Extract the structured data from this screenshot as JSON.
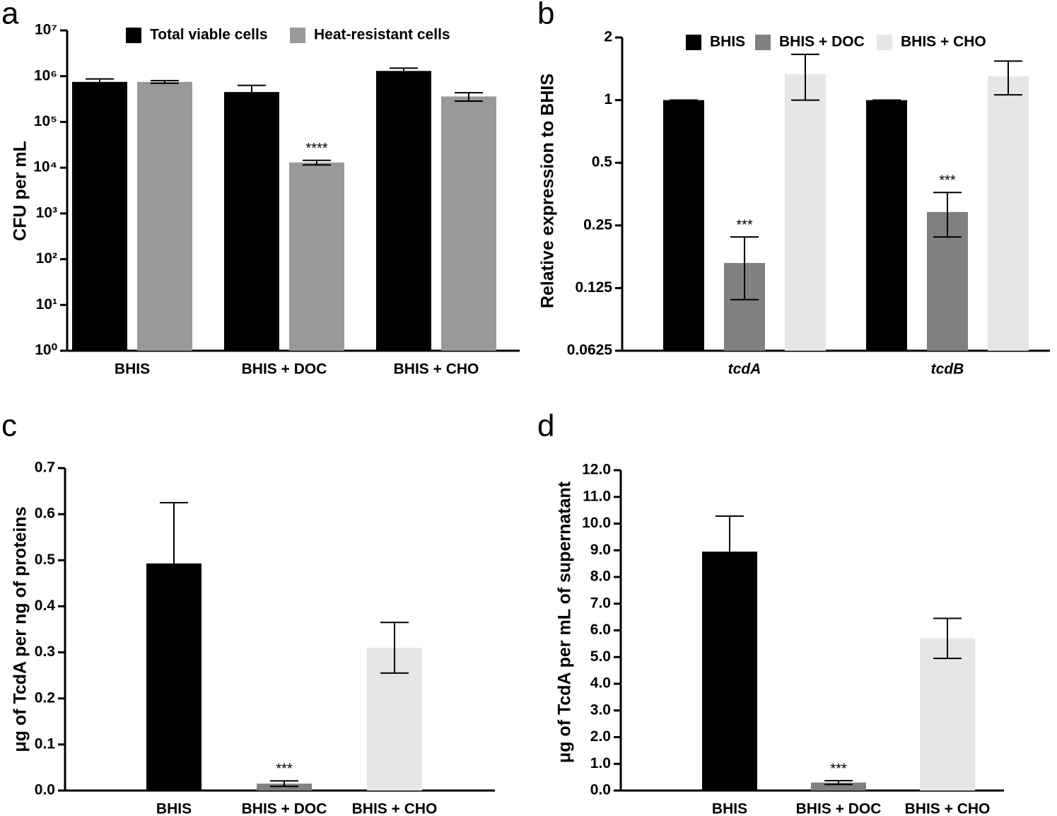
{
  "chart_data": [
    {
      "panel": "a",
      "type": "bar",
      "yscale": "log",
      "ylabel": "CFU per mL",
      "legend": "top",
      "categories": [
        "BHIS",
        "BHIS + DOC",
        "BHIS + CHO"
      ],
      "series": [
        {
          "name": "Total viable cells",
          "color": "#000000",
          "values": [
            750000,
            450000,
            1300000
          ],
          "errors": [
            120000,
            180000,
            200000
          ]
        },
        {
          "name": "Heat-resistant cells",
          "color": "#999999",
          "values": [
            750000,
            13000,
            360000
          ],
          "errors": [
            50000,
            1500,
            75000
          ],
          "annotations": [
            null,
            "****",
            null
          ]
        }
      ],
      "ylim": [
        1,
        10000000
      ],
      "yticks": [
        {
          "value": 1,
          "label": "10⁰"
        },
        {
          "value": 10,
          "label": "10¹"
        },
        {
          "value": 100,
          "label": "10²"
        },
        {
          "value": 1000,
          "label": "10³"
        },
        {
          "value": 10000,
          "label": "10⁴"
        },
        {
          "value": 100000,
          "label": "10⁵"
        },
        {
          "value": 1000000,
          "label": "10⁶"
        },
        {
          "value": 10000000,
          "label": "10⁷"
        }
      ]
    },
    {
      "panel": "b",
      "type": "bar",
      "yscale": "log",
      "ylabel": "Relative expression to BHIS",
      "legend": "top",
      "italic_categories": true,
      "categories": [
        "tcdA",
        "tcdB"
      ],
      "series": [
        {
          "name": "BHIS",
          "color": "#000000",
          "values": [
            1,
            1
          ],
          "errors": [
            0,
            0
          ]
        },
        {
          "name": "BHIS + DOC",
          "color": "#808080",
          "values": [
            0.165,
            0.29
          ],
          "errors": [
            0.055,
            0.07
          ],
          "annotations": [
            "***",
            "***"
          ]
        },
        {
          "name": "BHIS + CHO",
          "color": "#e6e6e6",
          "values": [
            1.33,
            1.3
          ],
          "errors": [
            0.33,
            0.24
          ]
        }
      ],
      "ylim": [
        0.0625,
        2
      ],
      "yticks": [
        0.0625,
        0.125,
        0.25,
        0.5,
        1,
        2
      ]
    },
    {
      "panel": "c",
      "type": "bar",
      "yscale": "linear",
      "ylabel": "μg of TcdA per ng of proteins",
      "categories": [
        "BHIS",
        "BHIS + DOC",
        "BHIS + CHO"
      ],
      "values": [
        0.493,
        0.015,
        0.31
      ],
      "errors": [
        0.132,
        0.006,
        0.055
      ],
      "colors": [
        "#000000",
        "#808080",
        "#e6e6e6"
      ],
      "annotations": [
        null,
        "***",
        null
      ],
      "ylim": [
        0,
        0.7
      ],
      "yticks": [
        {
          "value": 0,
          "label": "0.0"
        },
        0.1,
        0.2,
        0.3,
        0.4,
        0.5,
        0.6,
        0.7
      ]
    },
    {
      "panel": "d",
      "type": "bar",
      "yscale": "linear",
      "ylabel": "μg of TcdA per mL of supernatant",
      "categories": [
        "BHIS",
        "BHIS + DOC",
        "BHIS + CHO"
      ],
      "values": [
        8.95,
        0.3,
        5.7
      ],
      "errors": [
        1.33,
        0.07,
        0.75
      ],
      "colors": [
        "#000000",
        "#808080",
        "#e6e6e6"
      ],
      "annotations": [
        null,
        "***",
        null
      ],
      "ylim": [
        0,
        12
      ],
      "yticks": [
        {
          "value": 0,
          "label": "0.0"
        },
        {
          "value": 1,
          "label": "1.0"
        },
        {
          "value": 2,
          "label": "2.0"
        },
        {
          "value": 3,
          "label": "3.0"
        },
        {
          "value": 4,
          "label": "4.0"
        },
        {
          "value": 5,
          "label": "5.0"
        },
        {
          "value": 6,
          "label": "6.0"
        },
        {
          "value": 7,
          "label": "7.0"
        },
        {
          "value": 8,
          "label": "8.0"
        },
        {
          "value": 9,
          "label": "9.0"
        },
        {
          "value": 10,
          "label": "10.0"
        },
        {
          "value": 11,
          "label": "11.0"
        },
        {
          "value": 12,
          "label": "12.0"
        }
      ]
    }
  ]
}
